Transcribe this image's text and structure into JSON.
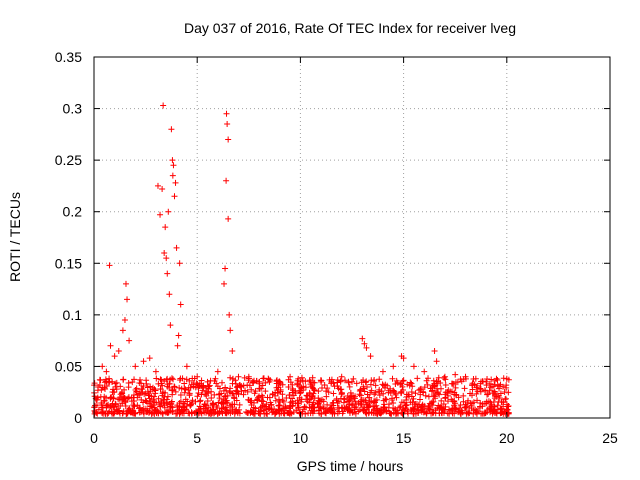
{
  "chart_data": {
    "type": "scatter",
    "title": "Day 037 of 2016, Rate Of TEC Index for receiver lveg",
    "xlabel": "GPS time / hours",
    "ylabel": "ROTI / TECUs",
    "xlim": [
      0,
      25
    ],
    "ylim": [
      0,
      0.35
    ],
    "xticks": [
      0,
      5,
      10,
      15,
      20,
      25
    ],
    "xtick_labels": [
      "0",
      "5",
      "10",
      "15",
      "20",
      "25"
    ],
    "yticks": [
      0,
      0.05,
      0.1,
      0.15,
      0.2,
      0.25,
      0.3,
      0.35
    ],
    "ytick_labels": [
      "0",
      "0.05",
      "0.1",
      "0.15",
      "0.2",
      "0.25",
      "0.3",
      "0.35"
    ],
    "grid": true,
    "marker": "+",
    "color": "#ff0000",
    "series": [
      {
        "points": [
          [
            0.05,
            0.012
          ],
          [
            0.2,
            0.03
          ],
          [
            0.4,
            0.05
          ],
          [
            0.6,
            0.045
          ],
          [
            0.75,
            0.148
          ],
          [
            0.8,
            0.07
          ],
          [
            1.0,
            0.06
          ],
          [
            1.2,
            0.065
          ],
          [
            1.4,
            0.085
          ],
          [
            1.5,
            0.095
          ],
          [
            1.55,
            0.13
          ],
          [
            1.6,
            0.115
          ],
          [
            1.7,
            0.075
          ],
          [
            2.0,
            0.05
          ],
          [
            2.4,
            0.055
          ],
          [
            2.7,
            0.058
          ],
          [
            3.0,
            0.045
          ],
          [
            3.1,
            0.225
          ],
          [
            3.2,
            0.197
          ],
          [
            3.3,
            0.222
          ],
          [
            3.35,
            0.303
          ],
          [
            3.4,
            0.16
          ],
          [
            3.45,
            0.185
          ],
          [
            3.5,
            0.155
          ],
          [
            3.55,
            0.14
          ],
          [
            3.6,
            0.2
          ],
          [
            3.65,
            0.12
          ],
          [
            3.7,
            0.09
          ],
          [
            3.75,
            0.28
          ],
          [
            3.8,
            0.25
          ],
          [
            3.82,
            0.235
          ],
          [
            3.85,
            0.245
          ],
          [
            3.9,
            0.215
          ],
          [
            3.95,
            0.228
          ],
          [
            4.0,
            0.165
          ],
          [
            4.05,
            0.07
          ],
          [
            4.1,
            0.08
          ],
          [
            4.15,
            0.15
          ],
          [
            4.2,
            0.11
          ],
          [
            4.5,
            0.05
          ],
          [
            5.0,
            0.04
          ],
          [
            5.5,
            0.035
          ],
          [
            6.0,
            0.045
          ],
          [
            6.3,
            0.13
          ],
          [
            6.35,
            0.145
          ],
          [
            6.4,
            0.23
          ],
          [
            6.42,
            0.295
          ],
          [
            6.45,
            0.285
          ],
          [
            6.5,
            0.27
          ],
          [
            6.5,
            0.193
          ],
          [
            6.55,
            0.1
          ],
          [
            6.6,
            0.085
          ],
          [
            6.7,
            0.065
          ],
          [
            7.0,
            0.04
          ],
          [
            7.5,
            0.04
          ],
          [
            8.0,
            0.035
          ],
          [
            8.5,
            0.035
          ],
          [
            9.0,
            0.035
          ],
          [
            9.5,
            0.04
          ],
          [
            10.0,
            0.035
          ],
          [
            10.5,
            0.035
          ],
          [
            11.0,
            0.035
          ],
          [
            11.5,
            0.035
          ],
          [
            12.0,
            0.04
          ],
          [
            12.5,
            0.035
          ],
          [
            13.0,
            0.077
          ],
          [
            13.1,
            0.072
          ],
          [
            13.2,
            0.068
          ],
          [
            13.4,
            0.06
          ],
          [
            14.0,
            0.045
          ],
          [
            14.5,
            0.05
          ],
          [
            14.9,
            0.06
          ],
          [
            15.0,
            0.058
          ],
          [
            15.5,
            0.05
          ],
          [
            16.0,
            0.045
          ],
          [
            16.5,
            0.065
          ],
          [
            16.6,
            0.055
          ],
          [
            17.0,
            0.04
          ],
          [
            17.5,
            0.042
          ],
          [
            18.0,
            0.04
          ],
          [
            18.5,
            0.038
          ],
          [
            19.0,
            0.035
          ],
          [
            19.5,
            0.038
          ],
          [
            20.0,
            0.038
          ]
        ]
      }
    ],
    "bulk_band": [
      {
        "x": [
          0,
          20.1
        ],
        "y": [
          0,
          0.035
        ]
      }
    ]
  }
}
